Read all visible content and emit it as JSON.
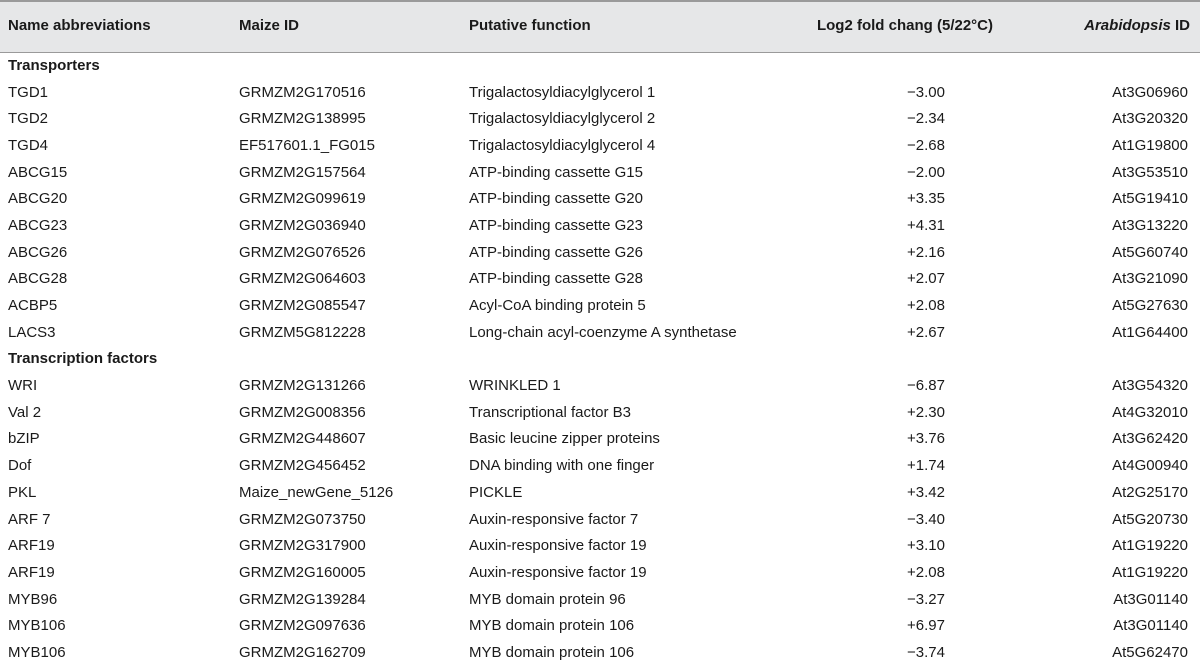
{
  "table": {
    "headers": {
      "name": "Name abbreviations",
      "maize": "Maize ID",
      "function": "Putative function",
      "log": "Log2 fold chang (5/22°C)",
      "arab_italic": "Arabidopsis",
      "arab_rest": " ID"
    },
    "sections": [
      {
        "title": "Transporters",
        "rows": [
          [
            "TGD1",
            "GRMZM2G170516",
            "Trigalactosyldiacylglycerol 1",
            "−3.00",
            "At3G06960"
          ],
          [
            "TGD2",
            "GRMZM2G138995",
            "Trigalactosyldiacylglycerol 2",
            "−2.34",
            "At3G20320"
          ],
          [
            "TGD4",
            "EF517601.1_FG015",
            "Trigalactosyldiacylglycerol 4",
            "−2.68",
            "At1G19800"
          ],
          [
            "ABCG15",
            "GRMZM2G157564",
            "ATP-binding cassette G15",
            "−2.00",
            "At3G53510"
          ],
          [
            "ABCG20",
            "GRMZM2G099619",
            "ATP-binding cassette G20",
            "+3.35",
            "At5G19410"
          ],
          [
            "ABCG23",
            "GRMZM2G036940",
            "ATP-binding cassette G23",
            "+4.31",
            "At3G13220"
          ],
          [
            "ABCG26",
            "GRMZM2G076526",
            "ATP-binding cassette G26",
            "+2.16",
            "At5G60740"
          ],
          [
            "ABCG28",
            "GRMZM2G064603",
            "ATP-binding cassette G28",
            "+2.07",
            "At3G21090"
          ],
          [
            "ACBP5",
            "GRMZM2G085547",
            "Acyl-CoA binding protein 5",
            "+2.08",
            "At5G27630"
          ],
          [
            "LACS3",
            "GRMZM5G812228",
            "Long-chain acyl-coenzyme A synthetase",
            "+2.67",
            "At1G64400"
          ]
        ]
      },
      {
        "title": "Transcription factors",
        "rows": [
          [
            "WRI",
            "GRMZM2G131266",
            "WRINKLED 1",
            "−6.87",
            "At3G54320"
          ],
          [
            "Val 2",
            "GRMZM2G008356",
            "Transcriptional factor B3",
            "+2.30",
            "At4G32010"
          ],
          [
            "bZIP",
            "GRMZM2G448607",
            "Basic leucine zipper proteins",
            "+3.76",
            "At3G62420"
          ],
          [
            "Dof",
            "GRMZM2G456452",
            "DNA binding with one finger",
            "+1.74",
            "At4G00940"
          ],
          [
            "PKL",
            "Maize_newGene_5126",
            "PICKLE",
            "+3.42",
            "At2G25170"
          ],
          [
            "ARF 7",
            "GRMZM2G073750",
            "Auxin-responsive factor 7",
            "−3.40",
            "At5G20730"
          ],
          [
            "ARF19",
            "GRMZM2G317900",
            "Auxin-responsive factor 19",
            "+3.10",
            "At1G19220"
          ],
          [
            "ARF19",
            "GRMZM2G160005",
            "Auxin-responsive factor 19",
            "+2.08",
            "At1G19220"
          ],
          [
            "MYB96",
            "GRMZM2G139284",
            "MYB domain protein 96",
            "−3.27",
            "At3G01140"
          ],
          [
            "MYB106",
            "GRMZM2G097636",
            "MYB domain protein 106",
            "+6.97",
            "At3G01140"
          ],
          [
            "MYB106",
            "GRMZM2G162709",
            "MYB domain protein 106",
            "−3.74",
            "At5G62470"
          ]
        ]
      }
    ]
  }
}
